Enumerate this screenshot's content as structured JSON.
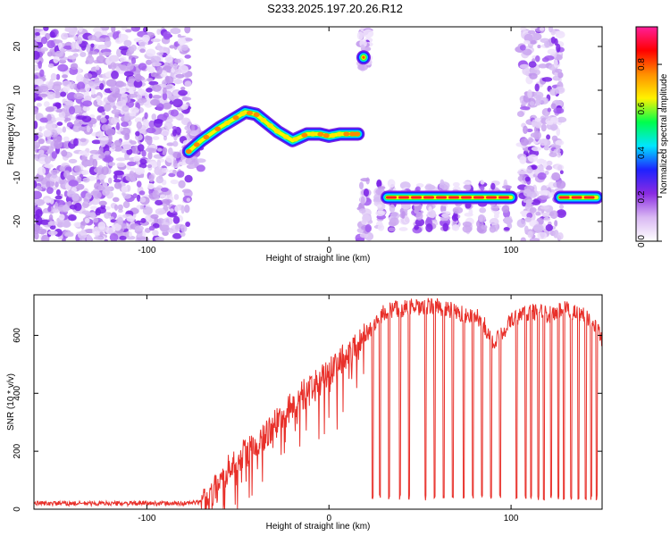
{
  "chart_data": [
    {
      "type": "heatmap",
      "title": "S233.2025.197.20.26.R12",
      "xlabel": "Height of straight line (km)",
      "ylabel": "Frequency (Hz)",
      "xlim": [
        -162,
        150
      ],
      "ylim": [
        -24.5,
        24.5
      ],
      "x_ticks": [
        -100,
        0,
        100
      ],
      "y_ticks": [
        -20,
        -10,
        0,
        10,
        20
      ],
      "colorbar": {
        "label": "Normalized spectral amplitude",
        "range": [
          0,
          0.97
        ],
        "ticks": [
          "0.0",
          "0.2",
          "0.4",
          "0.6",
          "0.8"
        ],
        "colors": [
          "#ffffff",
          "#d9b8f3",
          "#8a2be2",
          "#1e22ff",
          "#00e5ff",
          "#00ff4c",
          "#fff200",
          "#ff9000",
          "#ff0000",
          "#ff1f9a"
        ]
      },
      "tracks": [
        {
          "x": [
            -77,
            -70,
            -60,
            -52,
            -46,
            -40,
            -34,
            -28,
            -20,
            -12,
            -5,
            0,
            6,
            12,
            16
          ],
          "y": [
            -4,
            -1.5,
            1.5,
            3.5,
            5,
            4.5,
            2.5,
            0.5,
            -1.5,
            0,
            0,
            -0.5,
            0,
            0,
            0
          ]
        },
        {
          "x": [
            32,
            40,
            50,
            60,
            70,
            80,
            90,
            100
          ],
          "y": [
            -14.5,
            -14.5,
            -14.5,
            -14.5,
            -14.5,
            -14.5,
            -14.5,
            -14.5
          ]
        },
        {
          "x": [
            127,
            133,
            140,
            147
          ],
          "y": [
            -14.5,
            -14.5,
            -14.5,
            -14.5
          ]
        },
        {
          "x": [
            19
          ],
          "y": [
            17.5
          ]
        }
      ]
    },
    {
      "type": "line",
      "title": "",
      "xlabel": "Height of straight line (km)",
      "ylabel": "SNR (10 * v/v)",
      "xlim": [
        -162,
        150
      ],
      "ylim": [
        0,
        740
      ],
      "x_ticks": [
        -100,
        0,
        100
      ],
      "y_ticks": [
        0,
        200,
        400,
        600
      ],
      "color": "#e8302a",
      "series": [
        {
          "x": [
            -162,
            -140,
            -120,
            -100,
            -80,
            -70,
            -65,
            -60,
            -55,
            -50,
            -45,
            -40,
            -35,
            -30,
            -25,
            -20,
            -15,
            -10,
            -5,
            0,
            5,
            10,
            15,
            20,
            25,
            30,
            35,
            40,
            45,
            50,
            55,
            60,
            65,
            70,
            75,
            80,
            85,
            88,
            90,
            95,
            100,
            105,
            110,
            115,
            120,
            125,
            130,
            135,
            140,
            145,
            150
          ],
          "y": [
            20,
            20,
            20,
            20,
            20,
            25,
            40,
            90,
            140,
            170,
            200,
            230,
            260,
            290,
            320,
            360,
            390,
            410,
            440,
            470,
            500,
            530,
            560,
            600,
            640,
            680,
            690,
            690,
            700,
            690,
            700,
            700,
            690,
            680,
            670,
            670,
            640,
            600,
            570,
            610,
            650,
            670,
            680,
            680,
            670,
            680,
            690,
            680,
            670,
            650,
            590
          ]
        }
      ],
      "dropouts_x": [
        24,
        28,
        33,
        39,
        44,
        53,
        58,
        63,
        68,
        74,
        79,
        84,
        89,
        94,
        103,
        108,
        111,
        115,
        118,
        122,
        126,
        129,
        133,
        137,
        141,
        144,
        147
      ]
    }
  ]
}
